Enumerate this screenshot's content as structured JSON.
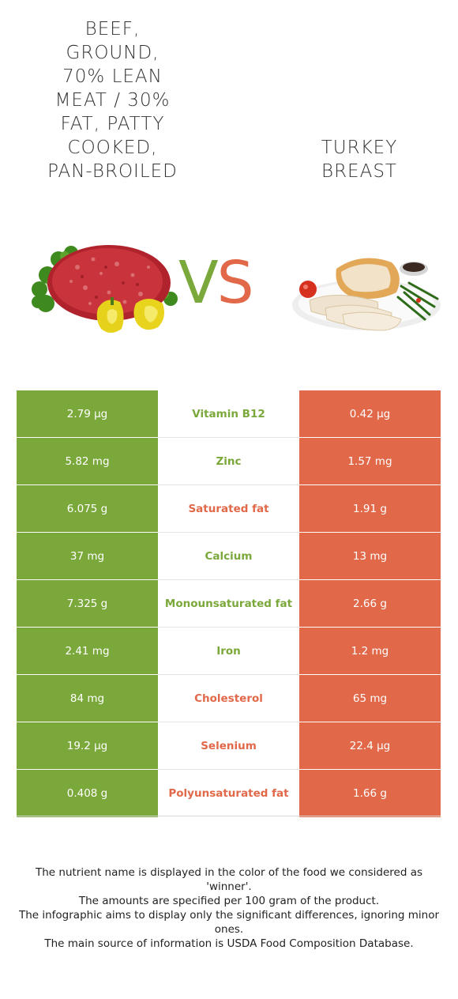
{
  "left_food": {
    "name": "Beef, ground, 70% lean meat / 30% fat, patty cooked, pan-broiled",
    "color": "#7ba83a",
    "image_icon": "ground-beef-with-peppers-icon"
  },
  "right_food": {
    "name": "Turkey breast",
    "color": "#e16849",
    "image_icon": "sliced-turkey-plate-icon"
  },
  "vs": {
    "v": "V",
    "s": "S"
  },
  "rows": [
    {
      "left": "2.79 µg",
      "nutrient": "Vitamin B12",
      "right": "0.42 µg",
      "winner": "left"
    },
    {
      "left": "5.82 mg",
      "nutrient": "Zinc",
      "right": "1.57 mg",
      "winner": "left"
    },
    {
      "left": "6.075 g",
      "nutrient": "Saturated fat",
      "right": "1.91 g",
      "winner": "right"
    },
    {
      "left": "37 mg",
      "nutrient": "Calcium",
      "right": "13 mg",
      "winner": "left"
    },
    {
      "left": "7.325 g",
      "nutrient": "Monounsaturated fat",
      "right": "2.66 g",
      "winner": "left"
    },
    {
      "left": "2.41 mg",
      "nutrient": "Iron",
      "right": "1.2 mg",
      "winner": "left"
    },
    {
      "left": "84 mg",
      "nutrient": "Cholesterol",
      "right": "65 mg",
      "winner": "right"
    },
    {
      "left": "19.2 µg",
      "nutrient": "Selenium",
      "right": "22.4 µg",
      "winner": "right"
    },
    {
      "left": "0.408 g",
      "nutrient": "Polyunsaturated fat",
      "right": "1.66 g",
      "winner": "right"
    }
  ],
  "footer": {
    "line1": "The nutrient name is displayed in the color of the food we considered as 'winner'.",
    "line2": "The amounts are specified per 100 gram of the product.",
    "line3": "The infographic aims to display only the significant differences, ignoring minor ones.",
    "line4": "The main source of information is USDA Food Composition Database."
  }
}
